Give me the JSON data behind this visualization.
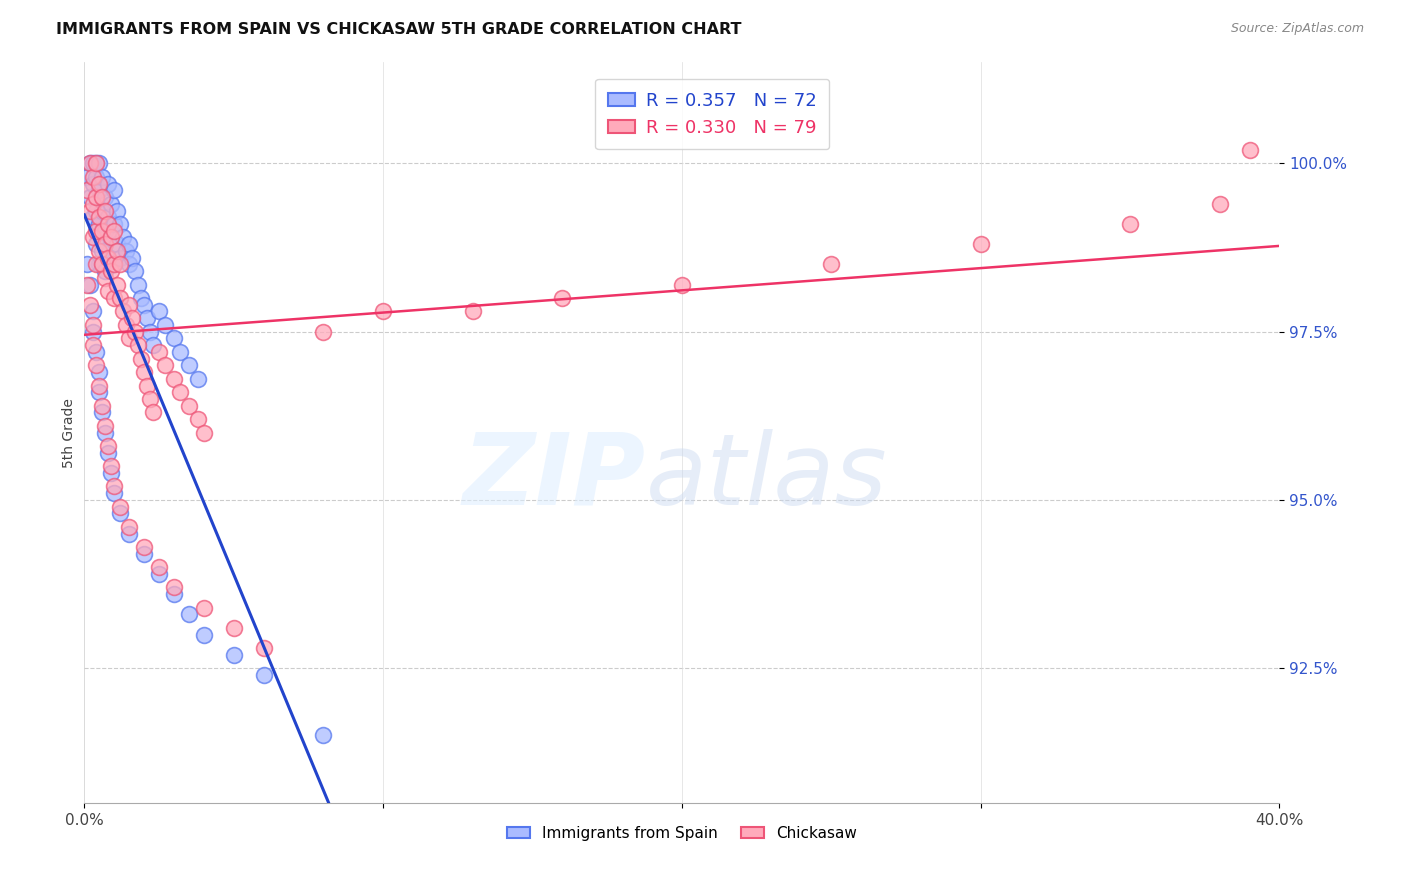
{
  "title": "IMMIGRANTS FROM SPAIN VS CHICKASAW 5TH GRADE CORRELATION CHART",
  "source": "Source: ZipAtlas.com",
  "ylabel": "5th Grade",
  "ytick_vals": [
    92.5,
    95.0,
    97.5,
    100.0
  ],
  "ytick_labels": [
    "92.5%",
    "95.0%",
    "97.5%",
    "100.0%"
  ],
  "xlim": [
    0.0,
    0.4
  ],
  "ylim": [
    90.5,
    101.5
  ],
  "blue_face": "#aabbff",
  "blue_edge": "#5577ee",
  "pink_face": "#ffaabb",
  "pink_edge": "#ee5577",
  "blue_line_color": "#2244cc",
  "pink_line_color": "#ee3366",
  "legend_R_blue": "R = 0.357",
  "legend_N_blue": "N = 72",
  "legend_R_pink": "R = 0.330",
  "legend_N_pink": "N = 79",
  "legend_label_blue": "Immigrants from Spain",
  "legend_label_pink": "Chickasaw",
  "blue_x": [
    0.001,
    0.002,
    0.002,
    0.003,
    0.003,
    0.003,
    0.004,
    0.004,
    0.004,
    0.004,
    0.005,
    0.005,
    0.005,
    0.005,
    0.006,
    0.006,
    0.006,
    0.007,
    0.007,
    0.007,
    0.008,
    0.008,
    0.008,
    0.009,
    0.009,
    0.01,
    0.01,
    0.01,
    0.011,
    0.011,
    0.012,
    0.012,
    0.013,
    0.014,
    0.015,
    0.015,
    0.016,
    0.017,
    0.018,
    0.019,
    0.02,
    0.021,
    0.022,
    0.023,
    0.025,
    0.027,
    0.03,
    0.032,
    0.035,
    0.038,
    0.001,
    0.002,
    0.003,
    0.003,
    0.004,
    0.005,
    0.005,
    0.006,
    0.007,
    0.008,
    0.009,
    0.01,
    0.012,
    0.015,
    0.02,
    0.025,
    0.03,
    0.035,
    0.04,
    0.05,
    0.06,
    0.08
  ],
  "blue_y": [
    99.8,
    100.0,
    99.5,
    100.0,
    99.7,
    99.2,
    100.0,
    99.8,
    99.3,
    98.8,
    100.0,
    99.6,
    99.1,
    98.5,
    99.8,
    99.3,
    98.7,
    99.5,
    99.0,
    98.4,
    99.7,
    99.2,
    98.6,
    99.4,
    98.9,
    99.6,
    99.1,
    98.5,
    99.3,
    98.8,
    99.1,
    98.6,
    98.9,
    98.7,
    98.5,
    98.8,
    98.6,
    98.4,
    98.2,
    98.0,
    97.9,
    97.7,
    97.5,
    97.3,
    97.8,
    97.6,
    97.4,
    97.2,
    97.0,
    96.8,
    98.5,
    98.2,
    97.8,
    97.5,
    97.2,
    96.9,
    96.6,
    96.3,
    96.0,
    95.7,
    95.4,
    95.1,
    94.8,
    94.5,
    94.2,
    93.9,
    93.6,
    93.3,
    93.0,
    92.7,
    92.4,
    91.5
  ],
  "pink_x": [
    0.001,
    0.002,
    0.002,
    0.003,
    0.003,
    0.003,
    0.004,
    0.004,
    0.004,
    0.004,
    0.005,
    0.005,
    0.005,
    0.006,
    0.006,
    0.006,
    0.007,
    0.007,
    0.007,
    0.008,
    0.008,
    0.008,
    0.009,
    0.009,
    0.01,
    0.01,
    0.01,
    0.011,
    0.011,
    0.012,
    0.012,
    0.013,
    0.014,
    0.015,
    0.015,
    0.016,
    0.017,
    0.018,
    0.019,
    0.02,
    0.021,
    0.022,
    0.023,
    0.025,
    0.027,
    0.03,
    0.032,
    0.035,
    0.038,
    0.04,
    0.001,
    0.002,
    0.003,
    0.003,
    0.004,
    0.005,
    0.006,
    0.007,
    0.008,
    0.009,
    0.01,
    0.012,
    0.015,
    0.02,
    0.025,
    0.03,
    0.04,
    0.05,
    0.06,
    0.08,
    0.1,
    0.13,
    0.16,
    0.2,
    0.25,
    0.3,
    0.35,
    0.38,
    0.39
  ],
  "pink_y": [
    99.6,
    100.0,
    99.3,
    99.8,
    99.4,
    98.9,
    100.0,
    99.5,
    99.0,
    98.5,
    99.7,
    99.2,
    98.7,
    99.5,
    99.0,
    98.5,
    99.3,
    98.8,
    98.3,
    99.1,
    98.6,
    98.1,
    98.9,
    98.4,
    99.0,
    98.5,
    98.0,
    98.7,
    98.2,
    98.5,
    98.0,
    97.8,
    97.6,
    97.4,
    97.9,
    97.7,
    97.5,
    97.3,
    97.1,
    96.9,
    96.7,
    96.5,
    96.3,
    97.2,
    97.0,
    96.8,
    96.6,
    96.4,
    96.2,
    96.0,
    98.2,
    97.9,
    97.6,
    97.3,
    97.0,
    96.7,
    96.4,
    96.1,
    95.8,
    95.5,
    95.2,
    94.9,
    94.6,
    94.3,
    94.0,
    93.7,
    93.4,
    93.1,
    92.8,
    97.5,
    97.8,
    97.8,
    98.0,
    98.2,
    98.5,
    98.8,
    99.1,
    99.4,
    100.2
  ]
}
